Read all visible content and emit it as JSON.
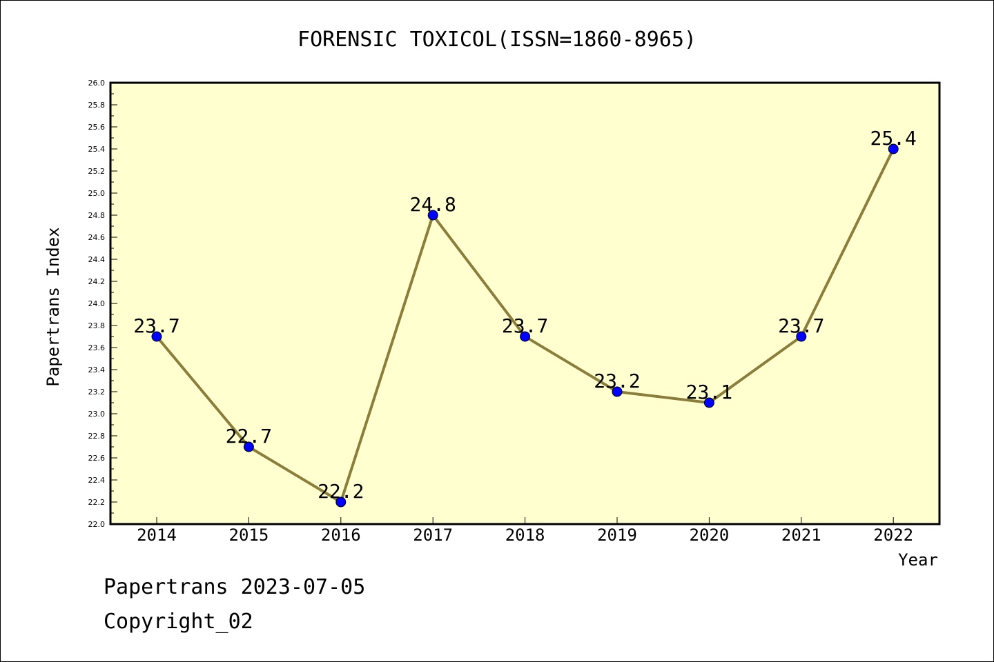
{
  "chart_data": {
    "type": "line",
    "title": "FORENSIC TOXICOL(ISSN=1860-8965)",
    "xlabel": "Year",
    "ylabel": "Papertrans Index",
    "categories": [
      "2014",
      "2015",
      "2016",
      "2017",
      "2018",
      "2019",
      "2020",
      "2021",
      "2022"
    ],
    "series": [
      {
        "values": [
          23.7,
          22.7,
          22.2,
          24.8,
          23.7,
          23.2,
          23.1,
          23.7,
          25.4
        ]
      }
    ],
    "data_labels": [
      "23.7",
      "22.7",
      "22.2",
      "24.8",
      "23.7",
      "23.2",
      "23.1",
      "23.7",
      "25.4"
    ],
    "ylim": [
      22.0,
      26.0
    ],
    "y_ticks": [
      "22.0",
      "22.2",
      "22.4",
      "22.6",
      "22.8",
      "23.0",
      "23.2",
      "23.4",
      "23.6",
      "23.8",
      "24.0",
      "24.2",
      "24.4",
      "24.6",
      "24.8",
      "25.0",
      "25.2",
      "25.4",
      "25.6",
      "25.8",
      "26.0"
    ],
    "grid": false,
    "legend": "none",
    "colors": {
      "plot_background": "#FFFFD0",
      "line": "#8B7D3A",
      "marker": "#0000FF"
    }
  },
  "footer": {
    "line1": "Papertrans 2023-07-05",
    "line2": "Copyright_02"
  }
}
